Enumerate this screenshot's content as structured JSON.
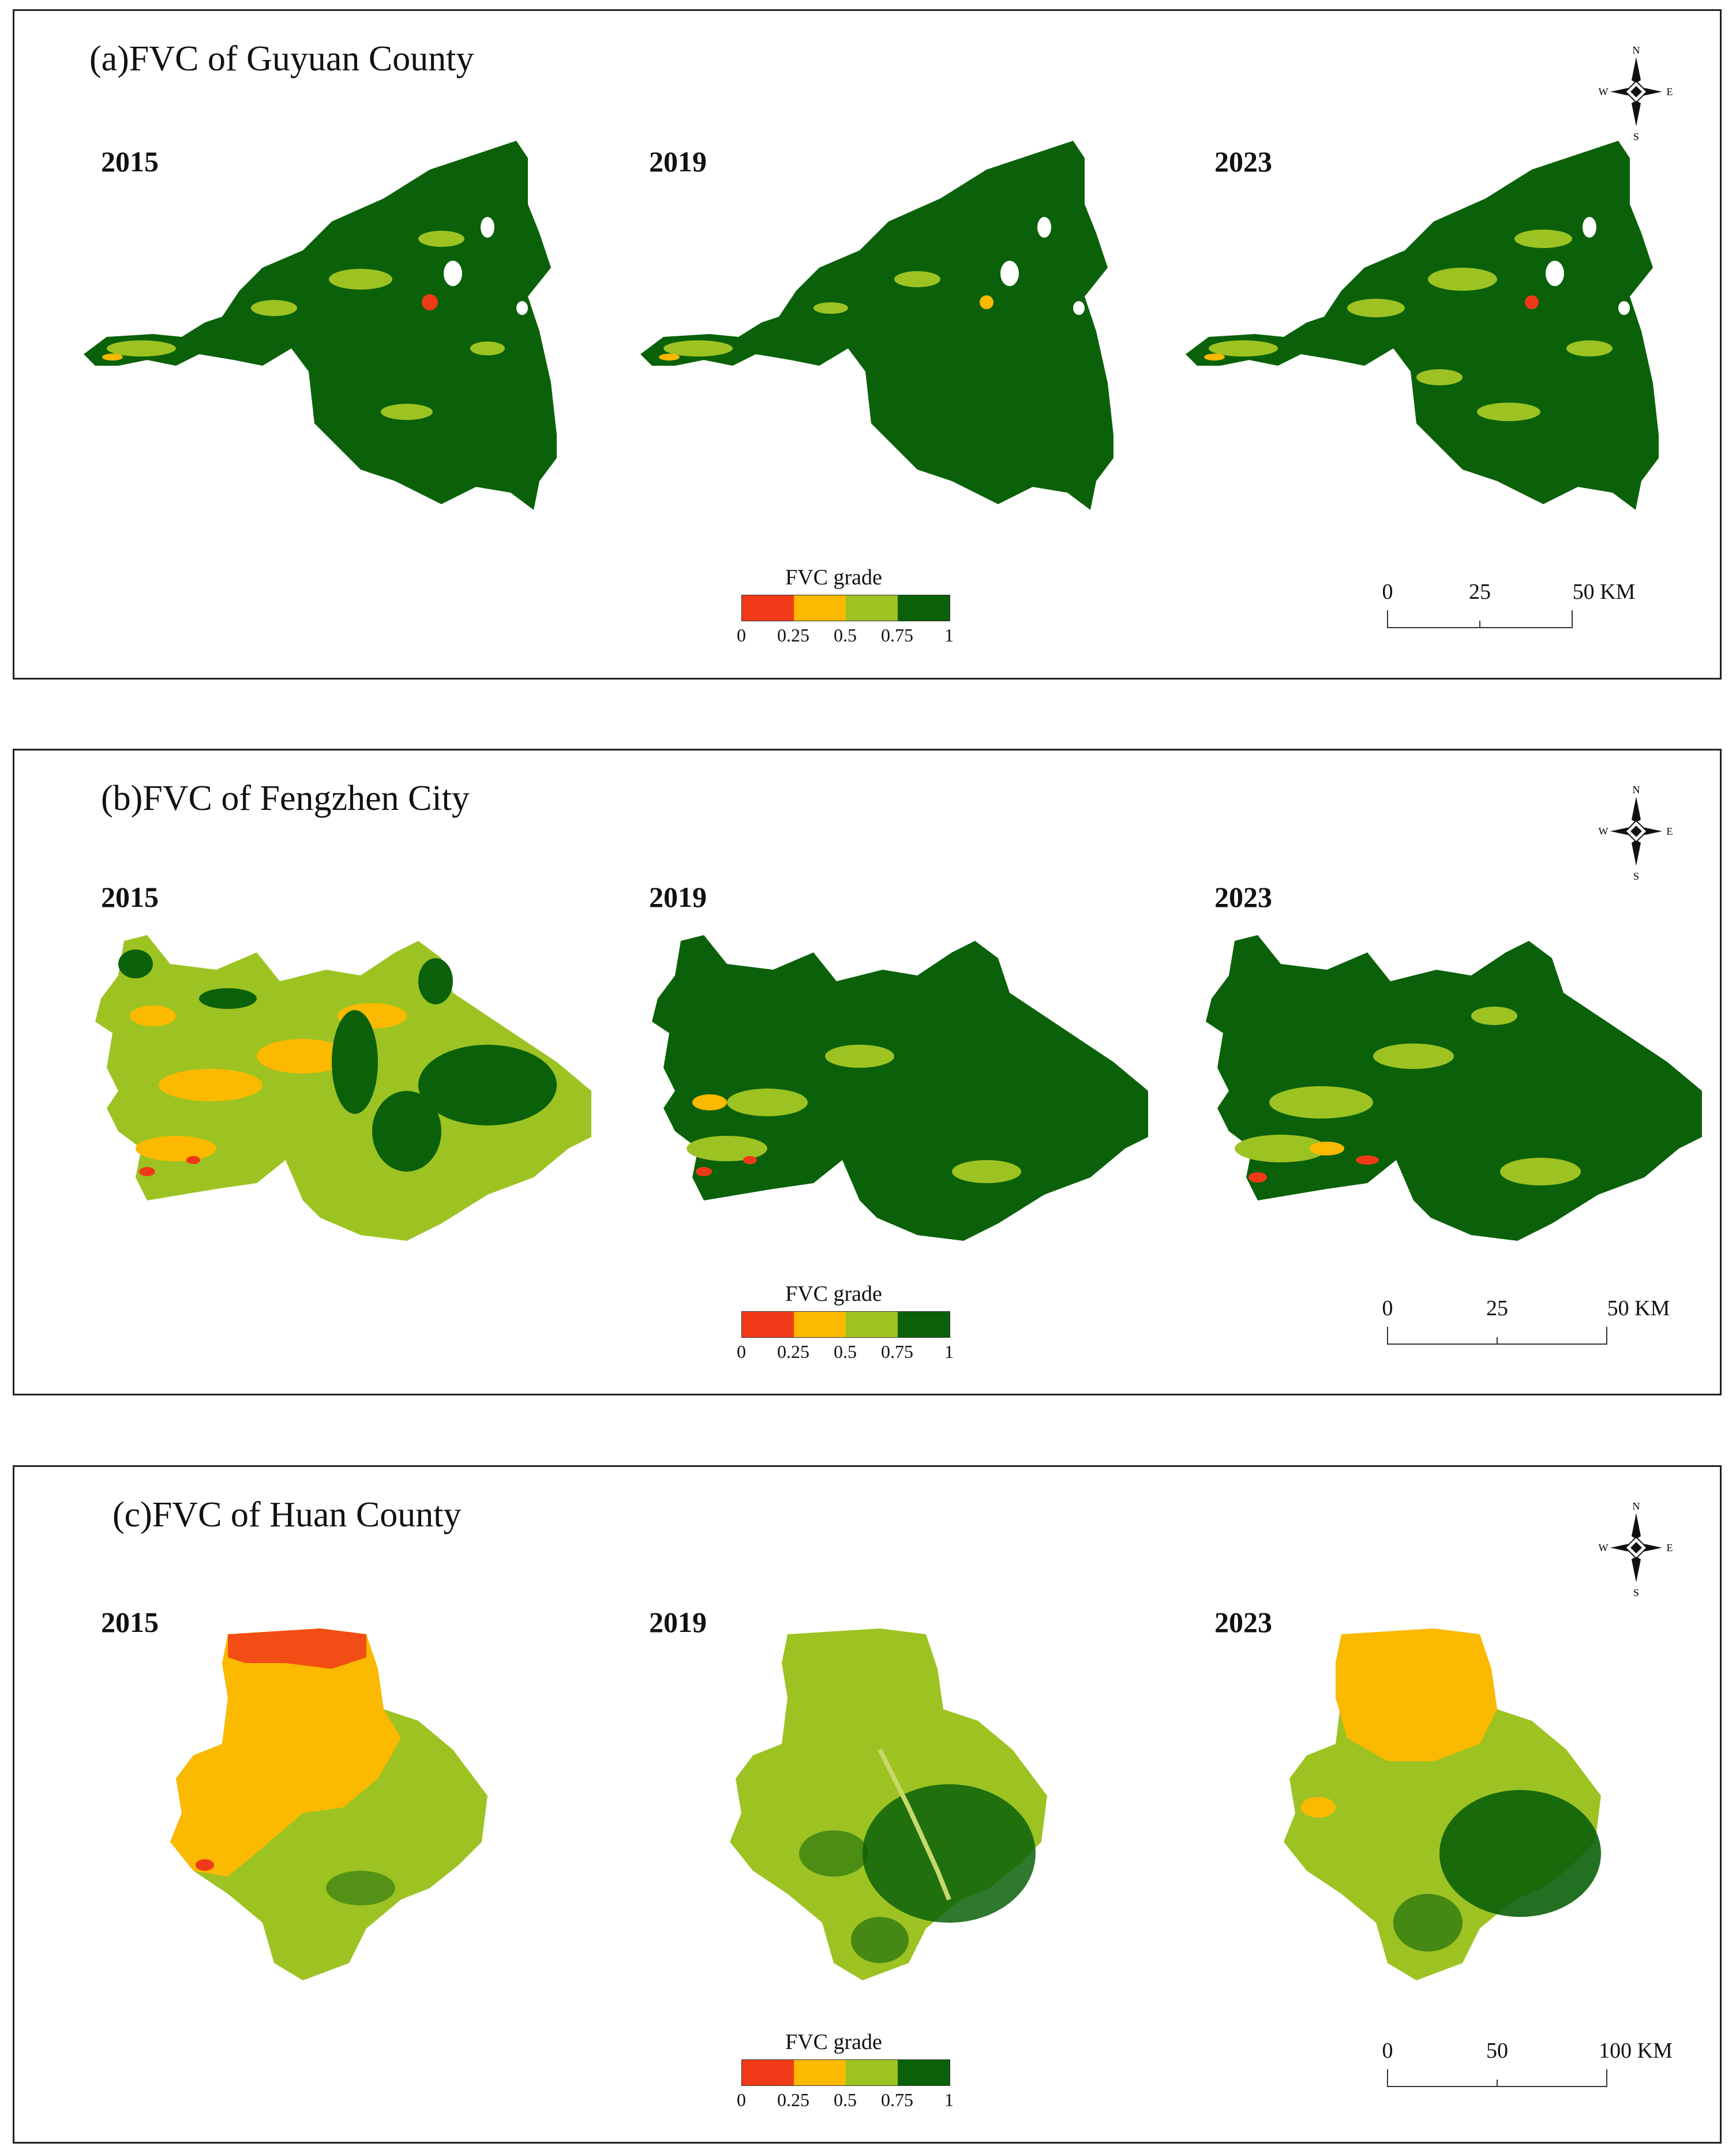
{
  "colors": {
    "frame": "#222222",
    "class_0_025": "#f03a17",
    "class_025_05": "#fbb900",
    "class_05_075": "#9dc323",
    "class_075_1": "#0a6109"
  },
  "legend": {
    "title": "FVC grade",
    "ticks": [
      "0",
      "0.25",
      "0.5",
      "0.75",
      "1"
    ]
  },
  "compass": {
    "n": "N",
    "s": "S",
    "e": "E",
    "w": "W"
  },
  "panels": [
    {
      "title": "(a)FVC of Guyuan County",
      "years": [
        "2015",
        "2019",
        "2023"
      ],
      "scale": {
        "ticks": [
          "0",
          "25",
          "50 KM"
        ]
      },
      "dominant_classes": [
        "class_075_1",
        "class_075_1",
        "class_075_1"
      ]
    },
    {
      "title": "(b)FVC of Fengzhen City",
      "years": [
        "2015",
        "2019",
        "2023"
      ],
      "scale": {
        "ticks": [
          "0",
          "25",
          "50 KM"
        ]
      },
      "dominant_classes": [
        "class_05_075",
        "class_075_1",
        "class_075_1"
      ]
    },
    {
      "title": "(c)FVC of Huan County",
      "years": [
        "2015",
        "2019",
        "2023"
      ],
      "scale": {
        "ticks": [
          "0",
          "50",
          "100 KM"
        ]
      },
      "dominant_classes": [
        "class_025_05",
        "class_05_075",
        "class_05_075"
      ]
    }
  ]
}
